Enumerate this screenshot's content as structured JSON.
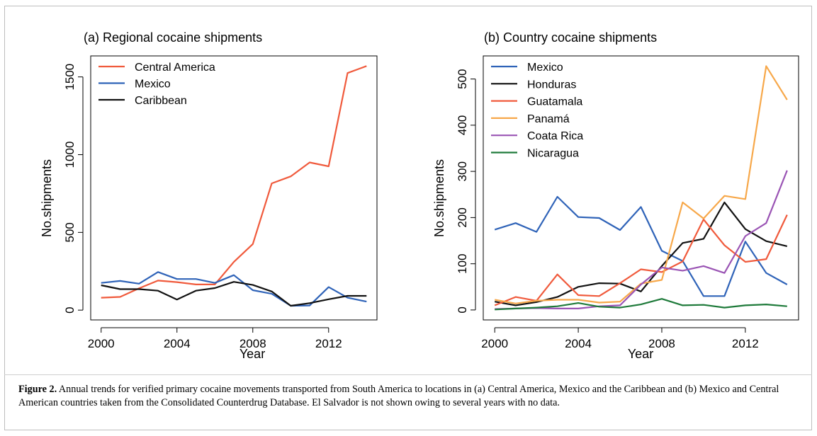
{
  "caption": {
    "label": "Figure 2.",
    "text": " Annual trends for verified primary cocaine movements transported from South America to locations in (a) Central America, Mexico and the Caribbean and (b) Mexico and Central American countries taken from the Consolidated Counterdrug Database. El Salvador is not shown owing to several years with no data."
  },
  "chart_data": [
    {
      "type": "line",
      "title": "(a) Regional cocaine shipments",
      "xlabel": "Year",
      "ylabel": "No.shipments",
      "x": [
        2000,
        2001,
        2002,
        2003,
        2004,
        2005,
        2006,
        2007,
        2008,
        2009,
        2010,
        2011,
        2012,
        2013,
        2014
      ],
      "xticks": [
        "2000",
        "2004",
        "2008",
        "2012"
      ],
      "yticks": [
        "0",
        "500",
        "1000",
        "1500"
      ],
      "xlim": [
        1999.45,
        2014.55
      ],
      "ylim": [
        -63,
        1635
      ],
      "grid": false,
      "legend_position": "top-left",
      "series": [
        {
          "name": "Central America",
          "color": "#f05a3c",
          "values": [
            80,
            85,
            140,
            190,
            180,
            165,
            165,
            310,
            425,
            815,
            860,
            950,
            925,
            1525,
            1570
          ]
        },
        {
          "name": "Mexico",
          "color": "#2f63b8",
          "values": [
            175,
            188,
            170,
            245,
            200,
            200,
            175,
            225,
            128,
            105,
            28,
            30,
            148,
            80,
            55
          ]
        },
        {
          "name": "Caribbean",
          "color": "#111111",
          "values": [
            160,
            135,
            135,
            125,
            68,
            125,
            142,
            182,
            162,
            120,
            28,
            45,
            70,
            92,
            92
          ]
        }
      ]
    },
    {
      "type": "line",
      "title": "(b) Country cocaine shipments",
      "xlabel": "Year",
      "ylabel": "No.shipments",
      "x": [
        2000,
        2001,
        2002,
        2003,
        2004,
        2005,
        2006,
        2007,
        2008,
        2009,
        2010,
        2011,
        2012,
        2013,
        2014
      ],
      "xticks": [
        "2000",
        "2004",
        "2008",
        "2012"
      ],
      "yticks": [
        "0",
        "100",
        "200",
        "300",
        "400",
        "500"
      ],
      "xlim": [
        1999.45,
        2014.55
      ],
      "ylim": [
        -21.6,
        550
      ],
      "grid": false,
      "legend_position": "top-left",
      "series": [
        {
          "name": "Mexico",
          "color": "#2f63b8",
          "values": [
            174,
            188,
            169,
            245,
            201,
            199,
            173,
            223,
            128,
            106,
            30,
            30,
            148,
            80,
            55
          ]
        },
        {
          "name": "Honduras",
          "color": "#111111",
          "values": [
            18,
            10,
            17,
            28,
            50,
            58,
            57,
            40,
            95,
            145,
            154,
            233,
            175,
            149,
            138
          ]
        },
        {
          "name": "Guatamala",
          "color": "#f05a3c",
          "values": [
            10,
            28,
            20,
            77,
            32,
            30,
            58,
            88,
            82,
            105,
            196,
            140,
            104,
            110,
            206
          ]
        },
        {
          "name": "Panamá",
          "color": "#f7a84a",
          "values": [
            22,
            14,
            20,
            22,
            22,
            16,
            18,
            57,
            65,
            233,
            198,
            247,
            240,
            528,
            455
          ]
        },
        {
          "name": "Coata Rica",
          "color": "#9a54b4",
          "values": [
            2,
            3,
            4,
            3,
            3,
            8,
            10,
            55,
            92,
            85,
            95,
            80,
            160,
            188,
            302
          ]
        },
        {
          "name": "Nicaragua",
          "color": "#1e7a3a",
          "values": [
            1,
            3,
            5,
            8,
            15,
            7,
            5,
            12,
            24,
            10,
            11,
            5,
            10,
            12,
            8
          ]
        }
      ]
    }
  ]
}
